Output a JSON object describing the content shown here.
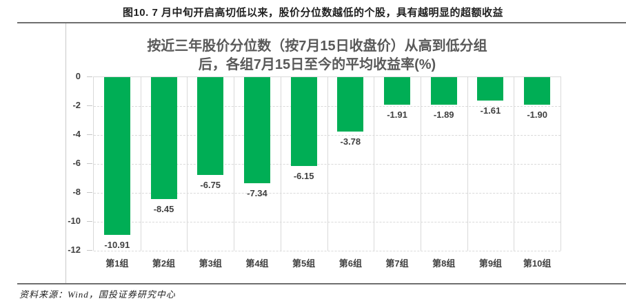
{
  "document": {
    "figure_title": "图10. 7 月中旬开启高切低以来，股价分位数越低的个股，具有越明显的超额收益",
    "source_note": "资料来源：Wind，国投证券研究中心"
  },
  "chart_data": {
    "type": "bar",
    "title_line1": "按近三年股价分位数（按7月15日收盘价）从高到低分组",
    "title_line2": "后，各组7月15日至今的平均收益率(%)",
    "categories": [
      "第1组",
      "第2组",
      "第3组",
      "第4组",
      "第5组",
      "第6组",
      "第7组",
      "第8组",
      "第9组",
      "第10组"
    ],
    "values": [
      -10.91,
      -8.45,
      -6.75,
      -7.34,
      -6.15,
      -3.78,
      -1.91,
      -1.89,
      -1.61,
      -1.9
    ],
    "data_labels": [
      "-10.91",
      "-8.45",
      "-6.75",
      "-7.34",
      "-6.15",
      "-3.78",
      "-1.91",
      "-1.89",
      "-1.61",
      "-1.90"
    ],
    "xlabel": "",
    "ylabel": "",
    "ylim": [
      -12,
      0
    ],
    "yticks": [
      0,
      -2,
      -4,
      -6,
      -8,
      -10,
      -12
    ],
    "grid": true,
    "legend_position": "none",
    "bar_color": "#00AE55",
    "gridline_color": "#d9d9d9",
    "label_color": "#404040",
    "title_color": "#595959"
  }
}
